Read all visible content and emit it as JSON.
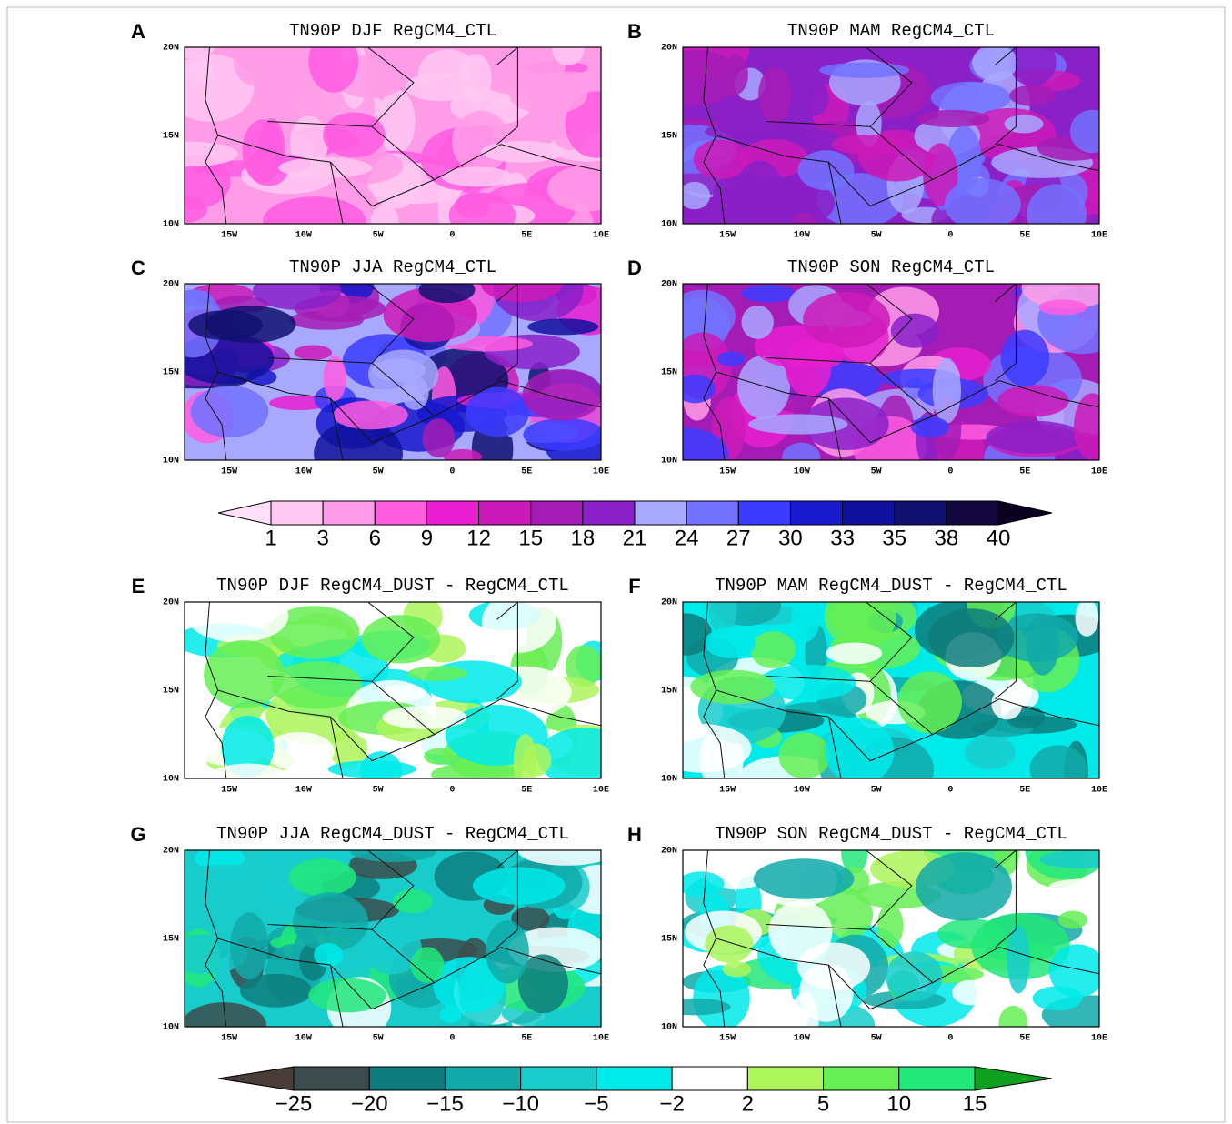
{
  "panels": [
    {
      "letter": "A",
      "title": "TN90P DJF RegCM4_CTL"
    },
    {
      "letter": "B",
      "title": "TN90P MAM RegCM4_CTL"
    },
    {
      "letter": "C",
      "title": "TN90P JJA RegCM4_CTL"
    },
    {
      "letter": "D",
      "title": "TN90P SON RegCM4_CTL"
    },
    {
      "letter": "E",
      "title": "TN90P DJF RegCM4_DUST - RegCM4_CTL"
    },
    {
      "letter": "F",
      "title": "TN90P MAM RegCM4_DUST - RegCM4_CTL"
    },
    {
      "letter": "G",
      "title": "TN90P JJA RegCM4_DUST - RegCM4_CTL"
    },
    {
      "letter": "H",
      "title": "TN90P SON RegCM4_DUST - RegCM4_CTL"
    }
  ],
  "map_axes": {
    "lat_labels": [
      "20N",
      "15N",
      "10N"
    ],
    "lon_labels": [
      "15W",
      "10W",
      "5W",
      "0",
      "5E",
      "10E"
    ]
  },
  "colorbars": [
    {
      "labels": [
        "1",
        "3",
        "6",
        "9",
        "12",
        "15",
        "18",
        "21",
        "24",
        "27",
        "30",
        "33",
        "35",
        "38",
        "40"
      ],
      "colors": [
        "#ffe0f8",
        "#ffc8f2",
        "#ff9ce8",
        "#ff5ce0",
        "#e81ed0",
        "#cc1ab8",
        "#a51cb5",
        "#8a20c8",
        "#a8a8ff",
        "#7272ff",
        "#3c3cff",
        "#1818cc",
        "#10109c",
        "#101070",
        "#12083e",
        "#0c0020"
      ]
    },
    {
      "labels": [
        "−25",
        "−20",
        "−15",
        "−10",
        "−5",
        "−2",
        "2",
        "5",
        "10",
        "15"
      ],
      "colors": [
        "#4a3c38",
        "#3c4c4c",
        "#0e7c7c",
        "#12a9a9",
        "#19cccc",
        "#00eaea",
        "#ffffff",
        "#adf55a",
        "#66ee55",
        "#22e87a",
        "#10a020"
      ]
    }
  ]
}
